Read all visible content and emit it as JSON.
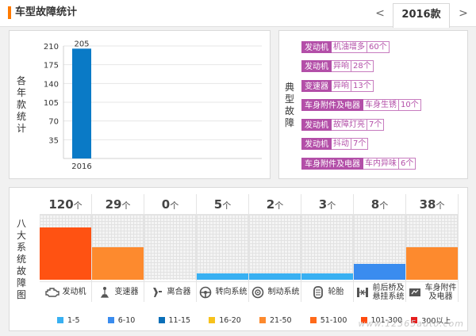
{
  "header": {
    "title": "车型故障统计",
    "prev_symbol": "<",
    "next_symbol": ">",
    "year_tab": "2016款"
  },
  "count_panel": {
    "vertical_label": [
      "各",
      "年",
      "款",
      "统",
      "计"
    ]
  },
  "chart_data": {
    "type": "bar",
    "categories": [
      "2016"
    ],
    "values": [
      205
    ],
    "data_labels": [
      "205"
    ],
    "yticks": [
      35,
      70,
      105,
      140,
      175,
      210
    ],
    "ylim": [
      0,
      210
    ],
    "bar_color": "#0a7ac6",
    "xlabel": "",
    "ylabel": ""
  },
  "typical_panel": {
    "vertical_label": [
      "典",
      "型",
      "故",
      "障"
    ],
    "faults": [
      {
        "category": "发动机",
        "description": "机油增多",
        "count": "60个"
      },
      {
        "category": "发动机",
        "description": "异响",
        "count": "28个"
      },
      {
        "category": "变速器",
        "description": "异响",
        "count": "13个"
      },
      {
        "category": "车身附件及电器",
        "description": "车身生锈",
        "count": "10个"
      },
      {
        "category": "发动机",
        "description": "故障灯亮",
        "count": "7个"
      },
      {
        "category": "发动机",
        "description": "抖动",
        "count": "7个"
      },
      {
        "category": "车身附件及电器",
        "description": "车内异味",
        "count": "6个"
      }
    ]
  },
  "eight_panel": {
    "vertical_label": [
      "八",
      "大",
      "系",
      "统",
      "故",
      "障",
      "图"
    ],
    "unit": "个",
    "systems": [
      {
        "name": "发动机",
        "count": "120",
        "level": 0.8,
        "color": "#ff5212",
        "icon": "engine-icon"
      },
      {
        "name": "变速器",
        "count": "29",
        "level": 0.5,
        "color": "#fd8a2e",
        "icon": "gear-shift-icon"
      },
      {
        "name": "离合器",
        "count": "0",
        "level": 0,
        "color": "#fd8a2e",
        "icon": "clutch-icon"
      },
      {
        "name": "转向系统",
        "count": "5",
        "level": 0.1,
        "color": "#38b0f2",
        "icon": "steering-wheel-icon"
      },
      {
        "name": "制动系统",
        "count": "2",
        "level": 0.1,
        "color": "#38b0f2",
        "icon": "brake-icon"
      },
      {
        "name": "轮胎",
        "count": "3",
        "level": 0.1,
        "color": "#38b0f2",
        "icon": "tire-icon"
      },
      {
        "name_lines": [
          "前后桥及",
          "悬挂系统"
        ],
        "count": "8",
        "level": 0.24,
        "color": "#3a8cef",
        "icon": "suspension-icon"
      },
      {
        "name_lines": [
          "车身附件",
          "及电器"
        ],
        "count": "38",
        "level": 0.5,
        "color": "#fd8a2e",
        "icon": "car-body-icon"
      }
    ],
    "legend": [
      {
        "label": "1-5",
        "color": "#38b0f2"
      },
      {
        "label": "6-10",
        "color": "#3a8cef"
      },
      {
        "label": "11-15",
        "color": "#0a6fb8"
      },
      {
        "label": "16-20",
        "color": "#f7c21c"
      },
      {
        "label": "21-50",
        "color": "#fd8a2e"
      },
      {
        "label": "51-100",
        "color": "#ff6a1a"
      },
      {
        "label": "101-300",
        "color": "#ff4b0f"
      },
      {
        "label": "300以上",
        "color": "#e51f1f"
      }
    ],
    "watermark": "www.12365auto.com"
  }
}
